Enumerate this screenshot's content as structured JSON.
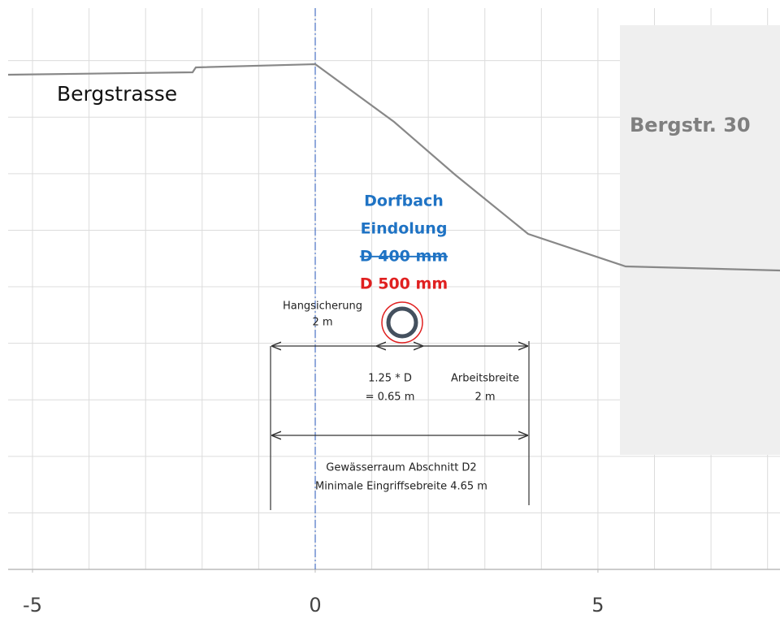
{
  "labels": {
    "street": "Bergstrasse",
    "house": "Bergstr. 30",
    "stream_name": "Dorfbach",
    "stream_kind": "Eindolung",
    "old_diameter": "D 400 mm",
    "new_diameter": "D 500 mm",
    "slope_protection": "Hangsicherung",
    "slope_protection_width": "2 m",
    "pipe_factor": "1.25 * D",
    "pipe_width": "= 0.65 m",
    "work_width_label": "Arbeitsbreite",
    "work_width": "2 m",
    "space_title": "Gewässerraum Abschnitt D2",
    "space_width": "Minimale Eingriffsebreite 4.65  m"
  },
  "axis": {
    "xlim": [
      -5.575,
      8.22
    ],
    "xticks": [
      -5,
      0,
      5
    ]
  }
}
